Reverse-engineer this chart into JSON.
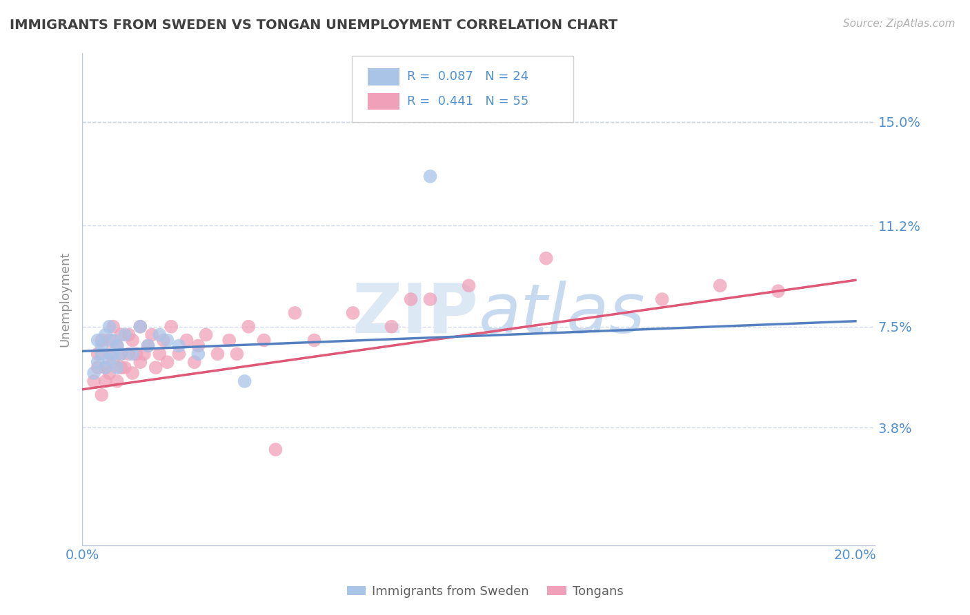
{
  "title": "IMMIGRANTS FROM SWEDEN VS TONGAN UNEMPLOYMENT CORRELATION CHART",
  "source": "Source: ZipAtlas.com",
  "ylabel": "Unemployment",
  "xlim": [
    0.0,
    0.205
  ],
  "ylim": [
    -0.005,
    0.175
  ],
  "yticks": [
    0.038,
    0.075,
    0.112,
    0.15
  ],
  "ytick_labels": [
    "3.8%",
    "7.5%",
    "11.2%",
    "15.0%"
  ],
  "xtick_labels_show": [
    "0.0%",
    "20.0%"
  ],
  "r_sweden": 0.087,
  "n_sweden": 24,
  "r_tongans": 0.441,
  "n_tongans": 55,
  "sweden_color": "#aac4e8",
  "tongan_color": "#f0a0b8",
  "sweden_line_color": "#5580c0",
  "tongan_line_color": "#e05878",
  "grid_color": "#c8d4e8",
  "title_color": "#404040",
  "axis_color": "#5090d0",
  "background_color": "#ffffff",
  "watermark_color": "#dce8f4",
  "sweden_x": [
    0.003,
    0.004,
    0.004,
    0.005,
    0.005,
    0.006,
    0.006,
    0.007,
    0.007,
    0.008,
    0.008,
    0.009,
    0.009,
    0.01,
    0.011,
    0.013,
    0.015,
    0.017,
    0.02,
    0.022,
    0.025,
    0.03,
    0.042,
    0.09
  ],
  "sweden_y": [
    0.058,
    0.062,
    0.07,
    0.065,
    0.068,
    0.06,
    0.072,
    0.063,
    0.075,
    0.065,
    0.07,
    0.06,
    0.068,
    0.065,
    0.072,
    0.065,
    0.075,
    0.068,
    0.072,
    0.07,
    0.068,
    0.065,
    0.055,
    0.13
  ],
  "tongan_x": [
    0.003,
    0.004,
    0.004,
    0.005,
    0.005,
    0.006,
    0.006,
    0.007,
    0.007,
    0.007,
    0.008,
    0.008,
    0.009,
    0.009,
    0.01,
    0.01,
    0.01,
    0.011,
    0.012,
    0.012,
    0.013,
    0.013,
    0.014,
    0.015,
    0.015,
    0.016,
    0.017,
    0.018,
    0.019,
    0.02,
    0.021,
    0.022,
    0.023,
    0.025,
    0.027,
    0.029,
    0.03,
    0.032,
    0.035,
    0.038,
    0.04,
    0.043,
    0.047,
    0.05,
    0.055,
    0.06,
    0.07,
    0.08,
    0.085,
    0.09,
    0.1,
    0.12,
    0.15,
    0.165,
    0.18
  ],
  "tongan_y": [
    0.055,
    0.06,
    0.065,
    0.05,
    0.07,
    0.055,
    0.06,
    0.065,
    0.058,
    0.07,
    0.062,
    0.075,
    0.055,
    0.068,
    0.06,
    0.072,
    0.065,
    0.06,
    0.065,
    0.072,
    0.058,
    0.07,
    0.065,
    0.062,
    0.075,
    0.065,
    0.068,
    0.072,
    0.06,
    0.065,
    0.07,
    0.062,
    0.075,
    0.065,
    0.07,
    0.062,
    0.068,
    0.072,
    0.065,
    0.07,
    0.065,
    0.075,
    0.07,
    0.03,
    0.08,
    0.07,
    0.08,
    0.075,
    0.085,
    0.085,
    0.09,
    0.1,
    0.085,
    0.09,
    0.088
  ],
  "sweden_line_x0": 0.0,
  "sweden_line_x1": 0.2,
  "sweden_line_y0": 0.066,
  "sweden_line_y1": 0.077,
  "tongan_line_x0": 0.0,
  "tongan_line_x1": 0.2,
  "tongan_line_y0": 0.052,
  "tongan_line_y1": 0.092
}
